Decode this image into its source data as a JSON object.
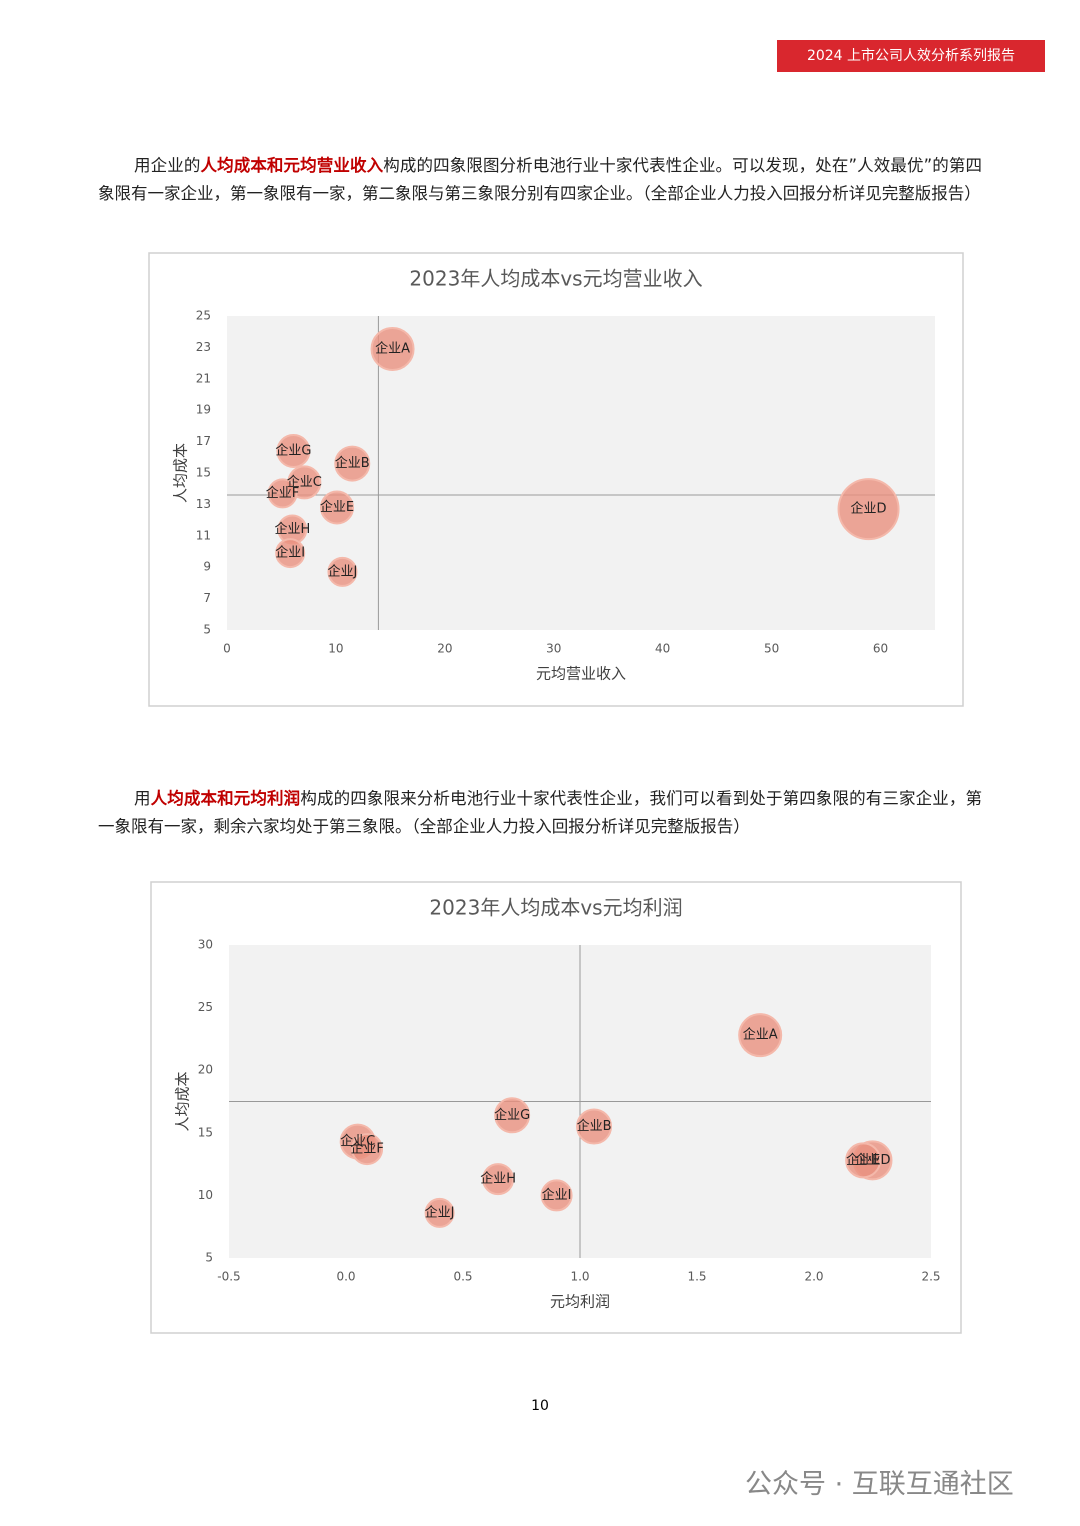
{
  "header": {
    "title": "2024 上市公司人效分析系列报告"
  },
  "paragraphs": [
    [
      "用企业的",
      "人均成本和元均营业收入",
      "构成的四象限图分析电池行业十家代表性企业。可以发现，处在”人效最优”的第四象限有一家企业，第一象限有一家，第二象限与第三象限分别有四家企业。（全部企业人力投入回报分析详见完整版报告）"
    ],
    [
      "用",
      "人均成本和元均利润",
      "构成的四象限来分析电池行业十家代表性企业，我们可以看到处于第四象限的有三家企业，第一象限有一家，剩余六家均处于第三象限。（全部企业人力投入回报分析详见完整版报告）"
    ]
  ],
  "chart_data": [
    {
      "type": "bubble",
      "title": "2023年人均成本vs元均营业收入",
      "x_label": "元均营业收入",
      "y_label": "人均成本",
      "labels": [
        "企业A",
        "企业B",
        "企业C",
        "企业D",
        "企业E",
        "企业F",
        "企业G",
        "企业H",
        "企业I",
        "企业J"
      ],
      "x": [
        15.2,
        11.5,
        7.1,
        58.9,
        10.1,
        5.1,
        6.1,
        6.0,
        5.8,
        10.6
      ],
      "values": [
        22.9,
        15.6,
        14.4,
        12.7,
        12.8,
        13.7,
        16.4,
        11.4,
        9.9,
        8.7
      ],
      "sizes": [
        21,
        17,
        16,
        30,
        16,
        14,
        16,
        14,
        14,
        14
      ],
      "color": "#e8907e",
      "xlim": [
        0,
        65
      ],
      "ylim": [
        5,
        25
      ],
      "xticks": [
        0,
        10,
        20,
        30,
        40,
        50,
        60
      ],
      "yticks": [
        5,
        7,
        9,
        11,
        13,
        15,
        17,
        19,
        21,
        23,
        25
      ],
      "quadrant_x": 13.9,
      "quadrant_y": 13.6
    },
    {
      "type": "bubble",
      "title": "2023年人均成本vs元均利润",
      "x_label": "元均利润",
      "y_label": "人均成本",
      "labels": [
        "企业A",
        "企业B",
        "企业C",
        "企业D",
        "企业E",
        "企业F",
        "企业G",
        "企业H",
        "企业I",
        "企业J"
      ],
      "x": [
        1.77,
        1.06,
        0.05,
        2.25,
        2.21,
        0.09,
        0.71,
        0.65,
        0.9,
        0.4
      ],
      "values": [
        22.8,
        15.5,
        14.3,
        12.8,
        12.8,
        13.7,
        16.4,
        11.3,
        10.0,
        8.6
      ],
      "sizes": [
        21,
        17,
        17,
        19,
        17,
        15,
        17,
        15,
        15,
        14
      ],
      "color": "#e8907e",
      "xlim": [
        -0.5,
        2.5
      ],
      "ylim": [
        5,
        30
      ],
      "xticks": [
        -0.5,
        {
          "value": 0,
          "label": "0.0"
        },
        0.5,
        {
          "value": 1,
          "label": "1.0"
        },
        1.5,
        {
          "value": 2,
          "label": "2.0"
        },
        2.5
      ],
      "yticks": [
        5,
        10,
        15,
        20,
        25,
        30
      ],
      "quadrant_x": 1.0,
      "quadrant_y": 17.5
    }
  ],
  "footer": {
    "page": "10",
    "watermark": "公众号 · 互联互通社区"
  }
}
